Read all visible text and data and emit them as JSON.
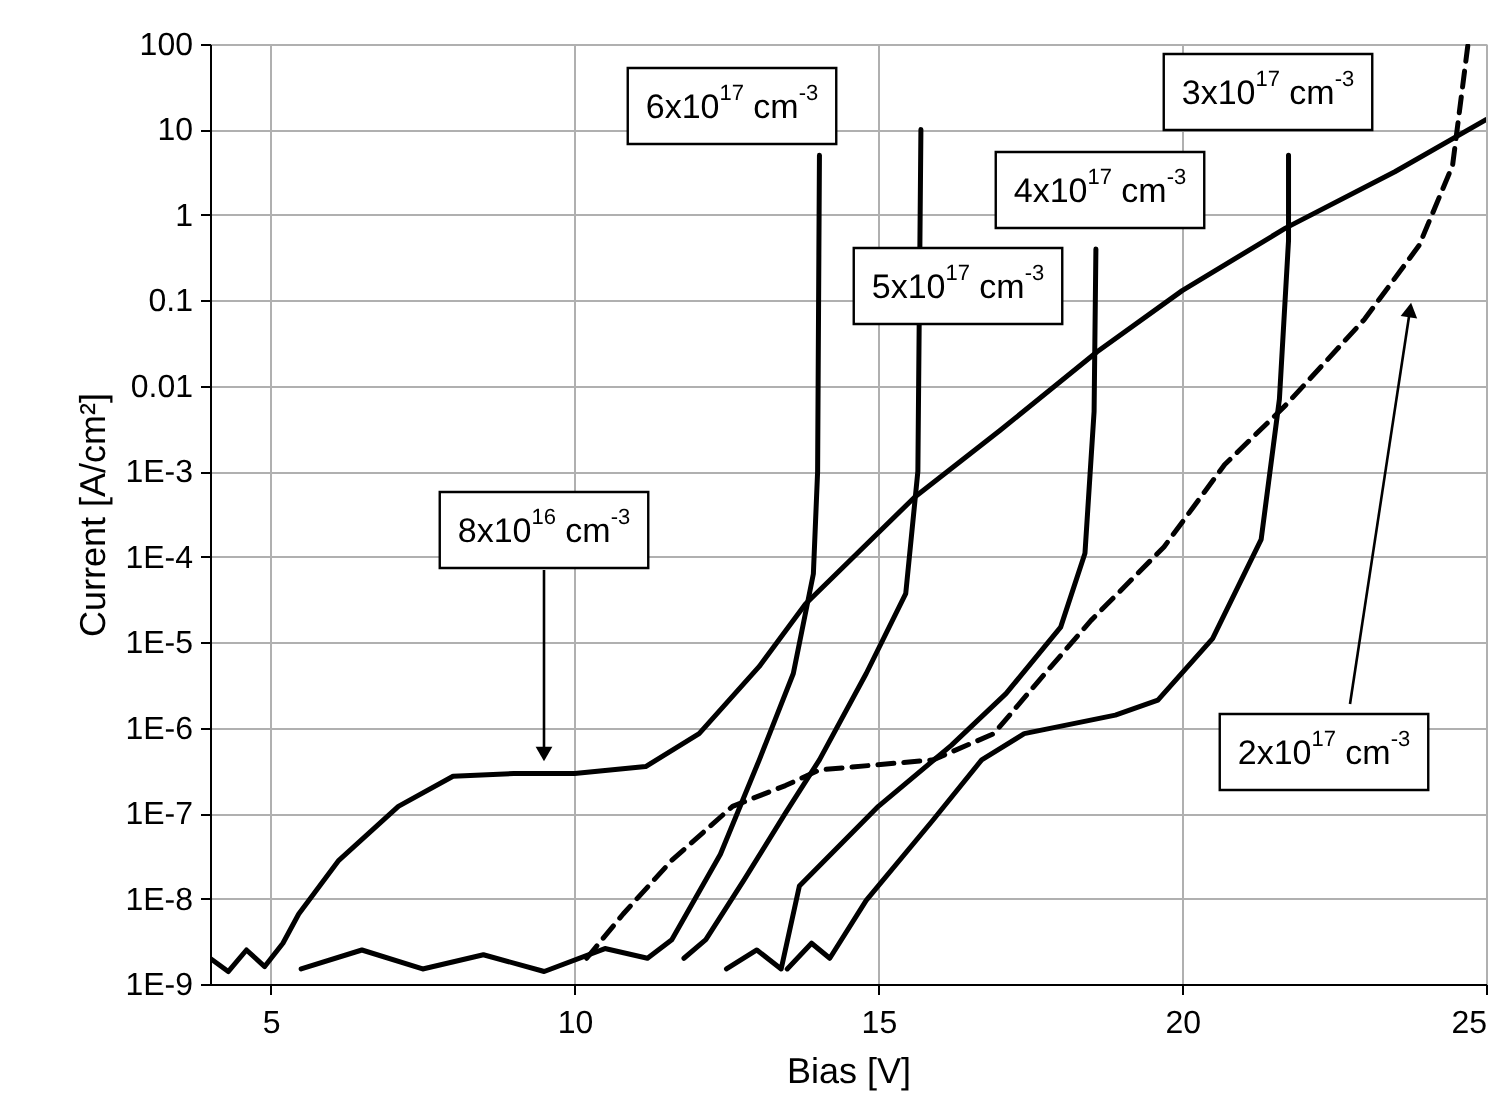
{
  "chart_data": {
    "type": "line",
    "xlabel": "Bias [V]",
    "ylabel": "Current [A/cm²]",
    "log": "y",
    "grid": true,
    "marker": "none",
    "xlim": [
      4,
      25
    ],
    "xticks": [
      5,
      10,
      15,
      20,
      25
    ],
    "ylim": [
      1e-09,
      100
    ],
    "yticks": [
      {
        "value": 1e-09,
        "label": "1E-9"
      },
      {
        "value": 1e-08,
        "label": "1E-8"
      },
      {
        "value": 1e-07,
        "label": "1E-7"
      },
      {
        "value": 1e-06,
        "label": "1E-6"
      },
      {
        "value": 1e-05,
        "label": "1E-5"
      },
      {
        "value": 0.0001,
        "label": "1E-4"
      },
      {
        "value": 0.001,
        "label": "1E-3"
      },
      0.01,
      0.1,
      1,
      10,
      100
    ],
    "series": [
      {
        "color": "#000000",
        "line_style": "solid",
        "x": [
          4,
          4.3,
          4.6,
          4.9,
          5.2,
          5.46,
          6.12,
          7.1,
          8.0,
          9.0,
          10.0,
          11.17,
          12.05,
          13.04,
          13.8,
          15.6,
          17,
          18.6,
          20,
          21.7,
          23.5,
          25
        ],
        "values": [
          2e-09,
          1.4e-09,
          2.5e-09,
          1.6e-09,
          3e-09,
          6.6e-09,
          2.8e-08,
          1.2e-07,
          2.7e-07,
          2.9e-07,
          2.9e-07,
          3.5e-07,
          8.5e-07,
          5.2e-06,
          2.8e-05,
          0.0005,
          0.003,
          0.025,
          0.13,
          0.7,
          3.2,
          13
        ]
      },
      {
        "color": "#000000",
        "line_style": "solid",
        "x": [
          5.5,
          6.5,
          7.5,
          8.5,
          9.5,
          10.5,
          11.2,
          11.6,
          12.4,
          13.04,
          13.6,
          13.93,
          14.0,
          14.03
        ],
        "values": [
          1.5e-09,
          2.5e-09,
          1.5e-09,
          2.2e-09,
          1.4e-09,
          2.6e-09,
          2e-09,
          3.3e-09,
          3.3e-08,
          4.2e-07,
          4.3e-06,
          6.3e-05,
          0.001,
          5
        ]
      },
      {
        "color": "#000000",
        "line_style": "solid",
        "x": [
          11.8,
          12.16,
          12.8,
          13.47,
          14.03,
          14.8,
          15.45,
          15.65,
          15.7
        ],
        "values": [
          2e-09,
          3.3e-09,
          1.7e-08,
          1e-07,
          4.2e-07,
          4.3e-06,
          3.7e-05,
          0.001,
          10
        ]
      },
      {
        "color": "#000000",
        "line_style": "solid",
        "x": [
          12.5,
          13.0,
          13.4,
          13.7,
          15.0,
          16.2,
          17.1,
          18.0,
          18.4,
          18.55,
          18.58
        ],
        "values": [
          1.5e-09,
          2.5e-09,
          1.5e-09,
          1.4e-08,
          1.2e-07,
          6.2e-07,
          2.5e-06,
          1.5e-05,
          0.00011,
          0.005,
          0.4
        ]
      },
      {
        "color": "#000000",
        "line_style": "solid",
        "x": [
          13.5,
          13.9,
          14.2,
          14.8,
          15.9,
          16.7,
          17.4,
          18.9,
          19.6,
          20.5,
          21.3,
          21.6,
          21.75,
          21.75
        ],
        "values": [
          1.5e-09,
          3e-09,
          2e-09,
          9.5e-09,
          8.3e-08,
          4.2e-07,
          8.5e-07,
          1.4e-06,
          2.1e-06,
          1.1e-05,
          0.00016,
          0.007,
          0.5,
          5
        ]
      },
      {
        "color": "#000000",
        "line_style": "dashed",
        "x": [
          10.2,
          10.8,
          11.6,
          12.6,
          13.47,
          14.03,
          15.9,
          16.9,
          17.65,
          18.5,
          19.7,
          20.7,
          21.7,
          23.0,
          23.9,
          24.45,
          24.7
        ],
        "values": [
          2e-09,
          6.6e-09,
          2.8e-08,
          1.2e-07,
          2.1e-07,
          3.2e-07,
          4.2e-07,
          8.5e-07,
          3.6e-06,
          1.8e-05,
          0.00013,
          0.0012,
          0.0059,
          0.06,
          0.44,
          3.8,
          95
        ]
      }
    ],
    "annotations": [
      "6x10$^{17}$ cm$^{-3}$",
      "5x10$^{17}$ cm$^{-3}$",
      "4x10$^{17}$ cm$^{-3}$",
      "3x10$^{17}$ cm$^{-3}$",
      "8x10$^{16}$ cm$^{-3}$",
      "2x10$^{17}$ cm$^{-3}$"
    ]
  }
}
